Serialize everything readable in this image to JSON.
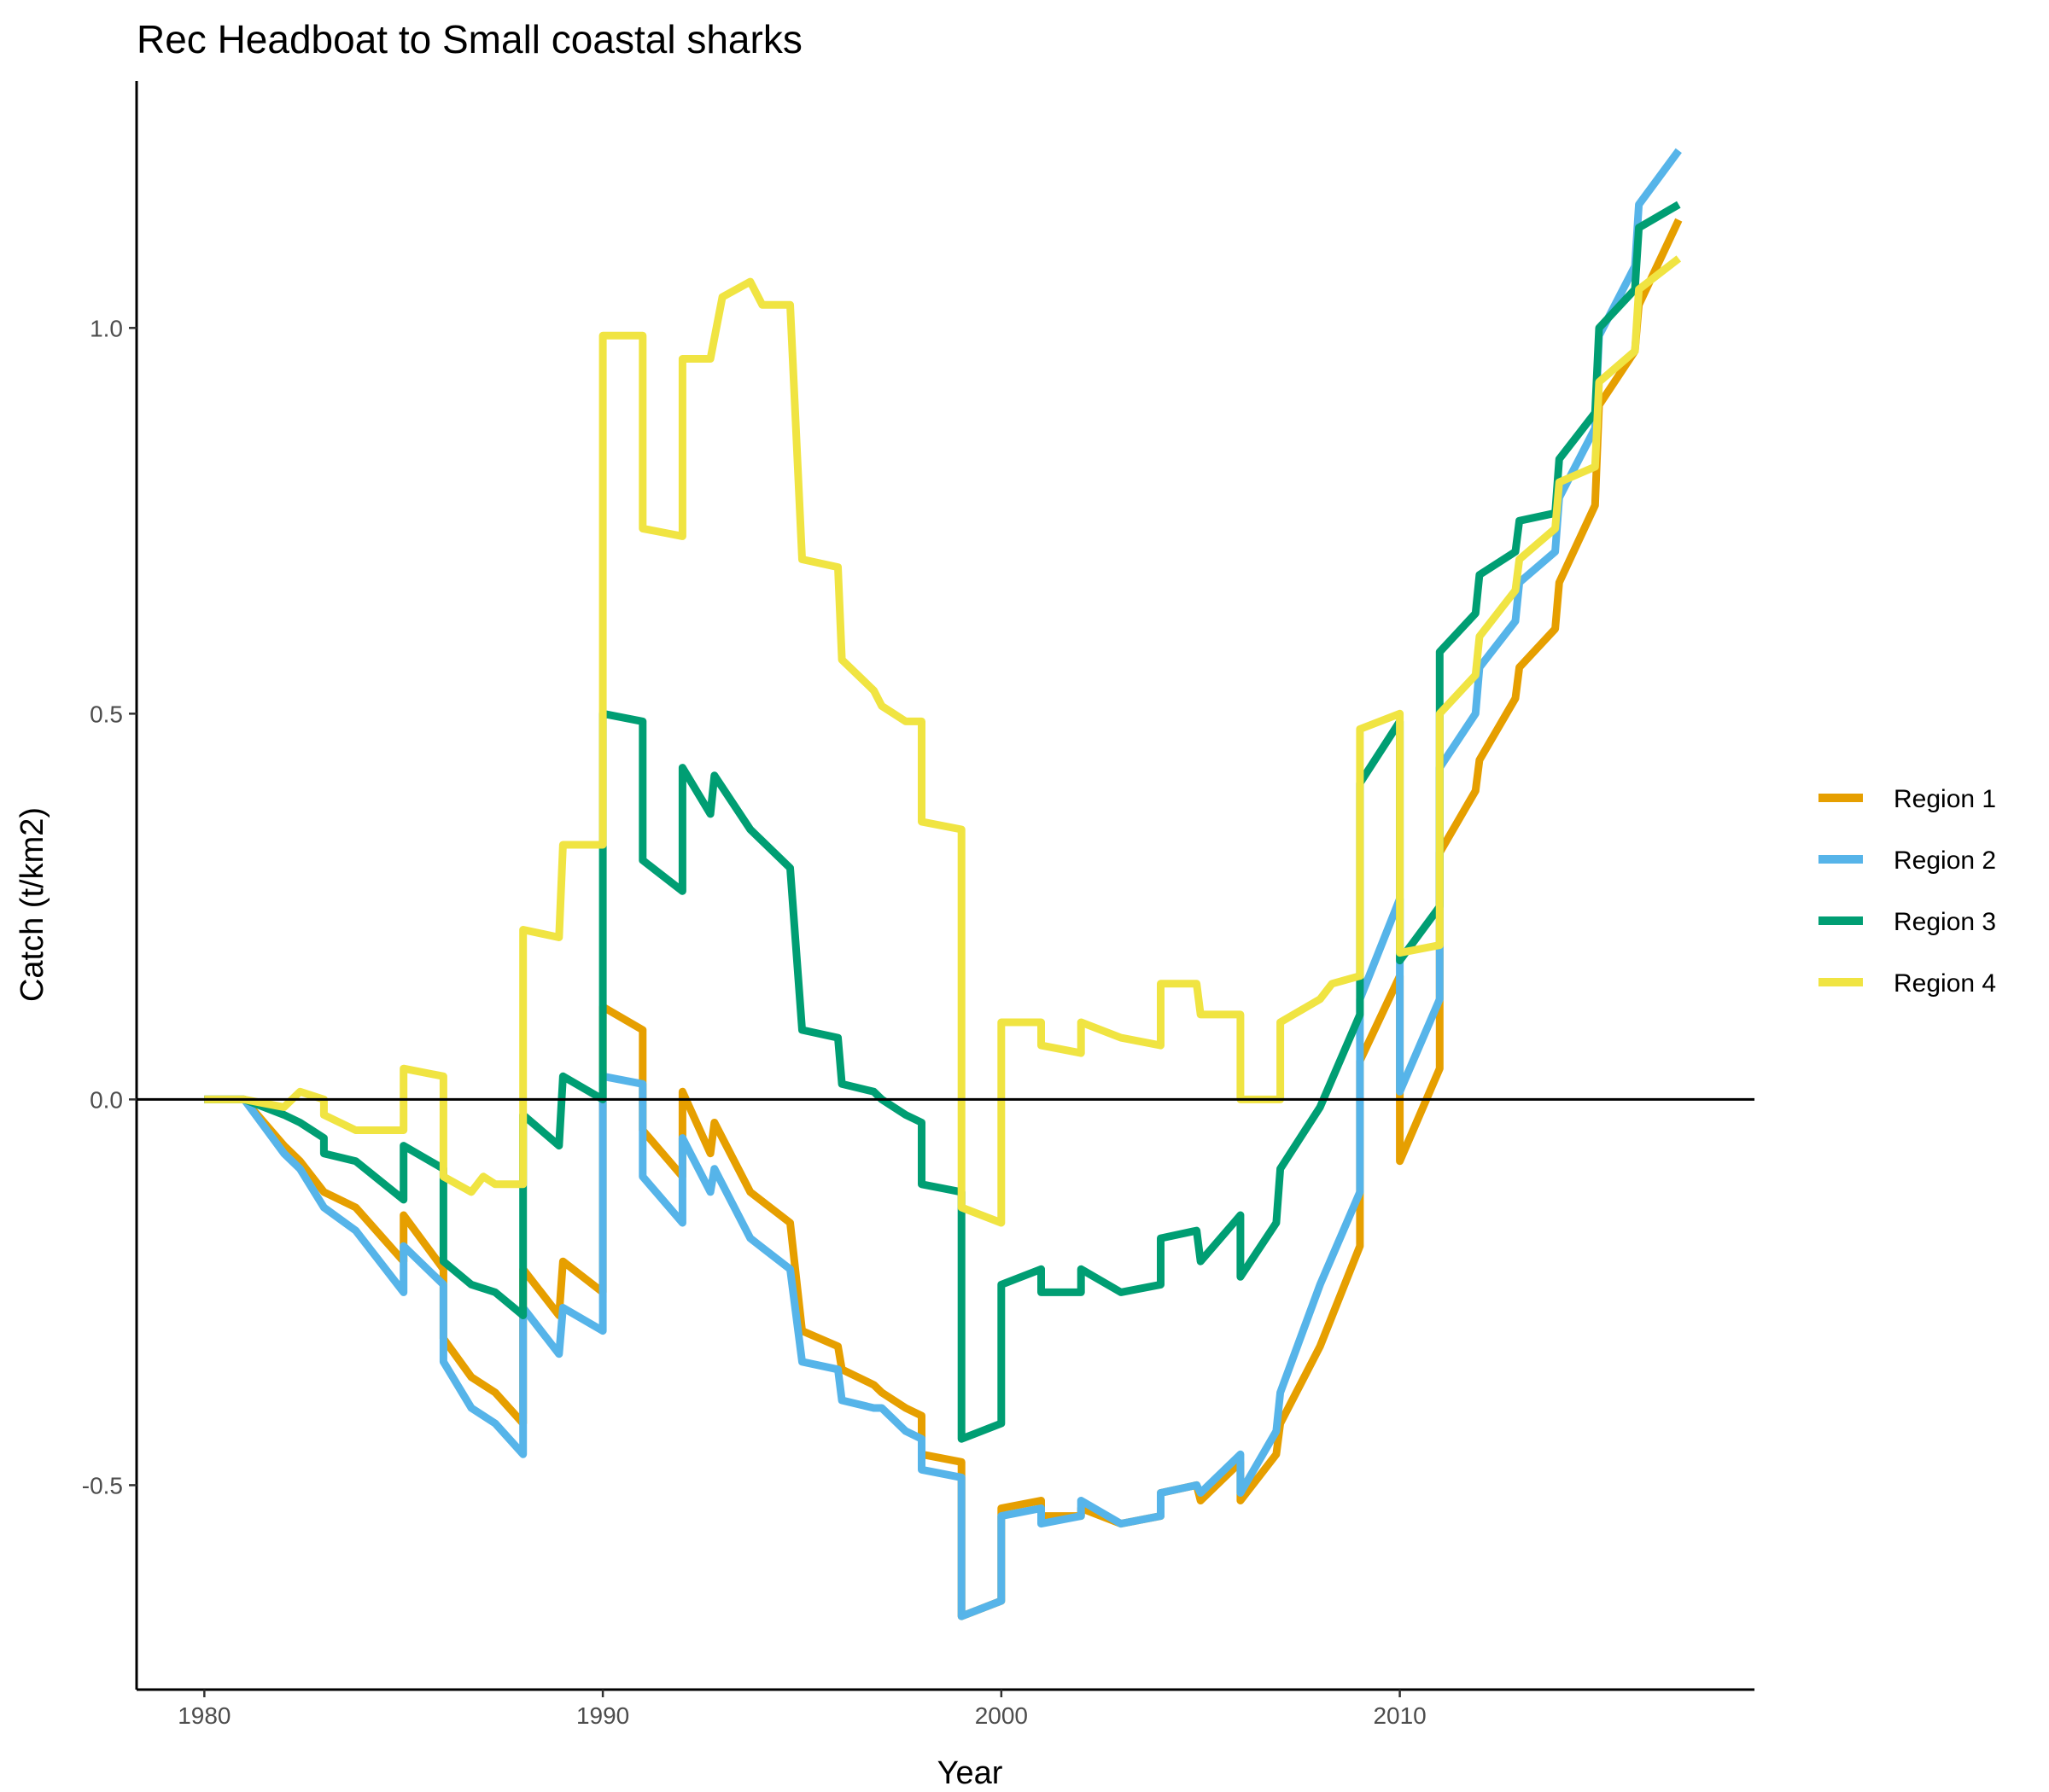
{
  "chart_data": {
    "type": "line",
    "title": "Rec Headboat to Small coastal sharks",
    "xlabel": "Year",
    "ylabel": "Catch (t/km2)",
    "xlim": [
      1978.3,
      2018.9
    ],
    "ylim": [
      -0.765,
      1.32
    ],
    "xticks": [
      1980,
      1990,
      2000,
      2010
    ],
    "xtick_labels": [
      "1980",
      "1990",
      "2000",
      "2010"
    ],
    "yticks": [
      -0.5,
      0,
      0.5,
      1.0
    ],
    "ytick_labels": [
      "-0.5",
      "0.0",
      "0.5",
      "1.0"
    ],
    "reference_line_y": 0,
    "grid": false,
    "legend_position": "right",
    "series": [
      {
        "name": "Region 1",
        "color": "#E69F00",
        "points": [
          [
            1980,
            0
          ],
          [
            1981,
            0
          ],
          [
            1982,
            -0.06
          ],
          [
            1982.4,
            -0.08
          ],
          [
            1983,
            -0.12
          ],
          [
            1983.8,
            -0.14
          ],
          [
            1985,
            -0.21
          ],
          [
            1985,
            -0.15
          ],
          [
            1986,
            -0.22
          ],
          [
            1986,
            -0.31
          ],
          [
            1986.7,
            -0.36
          ],
          [
            1987.3,
            -0.38
          ],
          [
            1988,
            -0.42
          ],
          [
            1988,
            -0.22
          ],
          [
            1988.9,
            -0.28
          ],
          [
            1989,
            -0.21
          ],
          [
            1990,
            -0.25
          ],
          [
            1990,
            0.12
          ],
          [
            1991,
            0.09
          ],
          [
            1991,
            -0.04
          ],
          [
            1992,
            -0.1
          ],
          [
            1992,
            0.01
          ],
          [
            1992.7,
            -0.07
          ],
          [
            1992.8,
            -0.03
          ],
          [
            1993.7,
            -0.12
          ],
          [
            1994.7,
            -0.16
          ],
          [
            1995,
            -0.3
          ],
          [
            1995.9,
            -0.32
          ],
          [
            1996,
            -0.35
          ],
          [
            1996.8,
            -0.37
          ],
          [
            1997,
            -0.38
          ],
          [
            1997.6,
            -0.4
          ],
          [
            1998,
            -0.41
          ],
          [
            1998,
            -0.46
          ],
          [
            1999,
            -0.47
          ],
          [
            1999,
            -0.67
          ],
          [
            2000,
            -0.65
          ],
          [
            2000,
            -0.53
          ],
          [
            2001,
            -0.52
          ],
          [
            2001,
            -0.54
          ],
          [
            2002,
            -0.54
          ],
          [
            2002,
            -0.53
          ],
          [
            2003,
            -0.55
          ],
          [
            2004,
            -0.54
          ],
          [
            2004,
            -0.51
          ],
          [
            2004.9,
            -0.5
          ],
          [
            2005,
            -0.52
          ],
          [
            2006,
            -0.47
          ],
          [
            2006,
            -0.52
          ],
          [
            2006.9,
            -0.46
          ],
          [
            2007,
            -0.42
          ],
          [
            2008,
            -0.32
          ],
          [
            2009,
            -0.19
          ],
          [
            2009,
            0.05
          ],
          [
            2010,
            0.16
          ],
          [
            2010,
            -0.08
          ],
          [
            2011,
            0.04
          ],
          [
            2011,
            0.32
          ],
          [
            2011.9,
            0.4
          ],
          [
            2012,
            0.44
          ],
          [
            2012.9,
            0.52
          ],
          [
            2013,
            0.56
          ],
          [
            2013.9,
            0.61
          ],
          [
            2014,
            0.67
          ],
          [
            2014.9,
            0.77
          ],
          [
            2015,
            0.9
          ],
          [
            2015.9,
            0.97
          ],
          [
            2016,
            1.03
          ],
          [
            2017,
            1.14
          ]
        ]
      },
      {
        "name": "Region 2",
        "color": "#56B4E9",
        "points": [
          [
            1980,
            0
          ],
          [
            1981,
            0
          ],
          [
            1982,
            -0.07
          ],
          [
            1982.4,
            -0.09
          ],
          [
            1983,
            -0.14
          ],
          [
            1983.8,
            -0.17
          ],
          [
            1985,
            -0.25
          ],
          [
            1985,
            -0.19
          ],
          [
            1986,
            -0.24
          ],
          [
            1986,
            -0.34
          ],
          [
            1986.7,
            -0.4
          ],
          [
            1987.3,
            -0.42
          ],
          [
            1988,
            -0.46
          ],
          [
            1988,
            -0.27
          ],
          [
            1988.9,
            -0.33
          ],
          [
            1989,
            -0.27
          ],
          [
            1990,
            -0.3
          ],
          [
            1990,
            0.03
          ],
          [
            1991,
            0.02
          ],
          [
            1991,
            -0.1
          ],
          [
            1992,
            -0.16
          ],
          [
            1992,
            -0.05
          ],
          [
            1992.7,
            -0.12
          ],
          [
            1992.8,
            -0.09
          ],
          [
            1993.7,
            -0.18
          ],
          [
            1994.7,
            -0.22
          ],
          [
            1995,
            -0.34
          ],
          [
            1995.9,
            -0.35
          ],
          [
            1996,
            -0.39
          ],
          [
            1996.8,
            -0.4
          ],
          [
            1997,
            -0.4
          ],
          [
            1997.6,
            -0.43
          ],
          [
            1998,
            -0.44
          ],
          [
            1998,
            -0.48
          ],
          [
            1999,
            -0.49
          ],
          [
            1999,
            -0.67
          ],
          [
            2000,
            -0.65
          ],
          [
            2000,
            -0.54
          ],
          [
            2001,
            -0.53
          ],
          [
            2001,
            -0.55
          ],
          [
            2002,
            -0.54
          ],
          [
            2002,
            -0.52
          ],
          [
            2003,
            -0.55
          ],
          [
            2004,
            -0.54
          ],
          [
            2004,
            -0.51
          ],
          [
            2004.9,
            -0.5
          ],
          [
            2005,
            -0.51
          ],
          [
            2006,
            -0.46
          ],
          [
            2006,
            -0.51
          ],
          [
            2006.9,
            -0.43
          ],
          [
            2007,
            -0.38
          ],
          [
            2008,
            -0.24
          ],
          [
            2009,
            -0.12
          ],
          [
            2009,
            0.13
          ],
          [
            2010,
            0.26
          ],
          [
            2010,
            0.01
          ],
          [
            2011,
            0.13
          ],
          [
            2011,
            0.43
          ],
          [
            2011.9,
            0.5
          ],
          [
            2012,
            0.56
          ],
          [
            2012.9,
            0.62
          ],
          [
            2013,
            0.67
          ],
          [
            2013.9,
            0.71
          ],
          [
            2014,
            0.78
          ],
          [
            2014.9,
            0.87
          ],
          [
            2015,
            0.99
          ],
          [
            2015.9,
            1.08
          ],
          [
            2016,
            1.16
          ],
          [
            2017,
            1.23
          ]
        ]
      },
      {
        "name": "Region 3",
        "color": "#009E73",
        "points": [
          [
            1980,
            0
          ],
          [
            1981,
            0
          ],
          [
            1982,
            -0.02
          ],
          [
            1982.4,
            -0.03
          ],
          [
            1983,
            -0.05
          ],
          [
            1983,
            -0.07
          ],
          [
            1983.8,
            -0.08
          ],
          [
            1985,
            -0.13
          ],
          [
            1985,
            -0.06
          ],
          [
            1986,
            -0.09
          ],
          [
            1986,
            -0.21
          ],
          [
            1986.7,
            -0.24
          ],
          [
            1987.3,
            -0.25
          ],
          [
            1988,
            -0.28
          ],
          [
            1988,
            -0.02
          ],
          [
            1988.9,
            -0.06
          ],
          [
            1989,
            0.03
          ],
          [
            1990,
            0
          ],
          [
            1990,
            0.5
          ],
          [
            1991,
            0.49
          ],
          [
            1991,
            0.31
          ],
          [
            1992,
            0.27
          ],
          [
            1992,
            0.43
          ],
          [
            1992.7,
            0.37
          ],
          [
            1992.8,
            0.42
          ],
          [
            1993.7,
            0.35
          ],
          [
            1994.7,
            0.3
          ],
          [
            1995,
            0.09
          ],
          [
            1995.9,
            0.08
          ],
          [
            1996,
            0.02
          ],
          [
            1996.8,
            0.01
          ],
          [
            1997,
            0
          ],
          [
            1997.6,
            -0.02
          ],
          [
            1998,
            -0.03
          ],
          [
            1998,
            -0.11
          ],
          [
            1999,
            -0.12
          ],
          [
            1999,
            -0.44
          ],
          [
            2000,
            -0.42
          ],
          [
            2000,
            -0.24
          ],
          [
            2001,
            -0.22
          ],
          [
            2001,
            -0.25
          ],
          [
            2002,
            -0.25
          ],
          [
            2002,
            -0.22
          ],
          [
            2003,
            -0.25
          ],
          [
            2004,
            -0.24
          ],
          [
            2004,
            -0.18
          ],
          [
            2004.9,
            -0.17
          ],
          [
            2005,
            -0.21
          ],
          [
            2006,
            -0.15
          ],
          [
            2006,
            -0.23
          ],
          [
            2006.9,
            -0.16
          ],
          [
            2007,
            -0.09
          ],
          [
            2008,
            -0.01
          ],
          [
            2009,
            0.11
          ],
          [
            2009,
            0.41
          ],
          [
            2010,
            0.49
          ],
          [
            2010,
            0.18
          ],
          [
            2011,
            0.25
          ],
          [
            2011,
            0.58
          ],
          [
            2011.9,
            0.63
          ],
          [
            2012,
            0.68
          ],
          [
            2012.9,
            0.71
          ],
          [
            2013,
            0.75
          ],
          [
            2013.9,
            0.76
          ],
          [
            2014,
            0.83
          ],
          [
            2014.9,
            0.89
          ],
          [
            2015,
            1.0
          ],
          [
            2015.9,
            1.05
          ],
          [
            2016,
            1.13
          ],
          [
            2017,
            1.16
          ]
        ]
      },
      {
        "name": "Region 4",
        "color": "#F0E442",
        "points": [
          [
            1980,
            0
          ],
          [
            1981,
            0
          ],
          [
            1982,
            -0.01
          ],
          [
            1982.4,
            0.01
          ],
          [
            1983,
            0
          ],
          [
            1983,
            -0.02
          ],
          [
            1983.8,
            -0.04
          ],
          [
            1985,
            -0.04
          ],
          [
            1985,
            0.04
          ],
          [
            1986,
            0.03
          ],
          [
            1986,
            -0.1
          ],
          [
            1986.7,
            -0.12
          ],
          [
            1987,
            -0.1
          ],
          [
            1987.3,
            -0.11
          ],
          [
            1988,
            -0.11
          ],
          [
            1988,
            0.22
          ],
          [
            1988.9,
            0.21
          ],
          [
            1989,
            0.33
          ],
          [
            1990,
            0.33
          ],
          [
            1990,
            0.99
          ],
          [
            1991,
            0.99
          ],
          [
            1991,
            0.74
          ],
          [
            1992,
            0.73
          ],
          [
            1992,
            0.96
          ],
          [
            1992.7,
            0.96
          ],
          [
            1993,
            1.04
          ],
          [
            1993.7,
            1.06
          ],
          [
            1994,
            1.03
          ],
          [
            1994.7,
            1.03
          ],
          [
            1995,
            0.7
          ],
          [
            1995.9,
            0.69
          ],
          [
            1996,
            0.57
          ],
          [
            1996.8,
            0.53
          ],
          [
            1997,
            0.51
          ],
          [
            1997.6,
            0.49
          ],
          [
            1998,
            0.49
          ],
          [
            1998,
            0.36
          ],
          [
            1999,
            0.35
          ],
          [
            1999,
            -0.14
          ],
          [
            2000,
            -0.16
          ],
          [
            2000,
            0.1
          ],
          [
            2001,
            0.1
          ],
          [
            2001,
            0.07
          ],
          [
            2002,
            0.06
          ],
          [
            2002,
            0.1
          ],
          [
            2003,
            0.08
          ],
          [
            2004,
            0.07
          ],
          [
            2004,
            0.15
          ],
          [
            2004.9,
            0.15
          ],
          [
            2005,
            0.11
          ],
          [
            2006,
            0.11
          ],
          [
            2006,
            0
          ],
          [
            2006.5,
            0
          ],
          [
            2007,
            0
          ],
          [
            2007,
            0.1
          ],
          [
            2008,
            0.13
          ],
          [
            2008.3,
            0.15
          ],
          [
            2009,
            0.16
          ],
          [
            2009,
            0.48
          ],
          [
            2010,
            0.5
          ],
          [
            2010,
            0.19
          ],
          [
            2011,
            0.2
          ],
          [
            2011,
            0.5
          ],
          [
            2011.9,
            0.55
          ],
          [
            2012,
            0.6
          ],
          [
            2012.9,
            0.66
          ],
          [
            2013,
            0.7
          ],
          [
            2013.9,
            0.74
          ],
          [
            2014,
            0.8
          ],
          [
            2014.9,
            0.82
          ],
          [
            2015,
            0.93
          ],
          [
            2015.9,
            0.97
          ],
          [
            2016,
            1.05
          ],
          [
            2017,
            1.09
          ]
        ]
      }
    ]
  }
}
